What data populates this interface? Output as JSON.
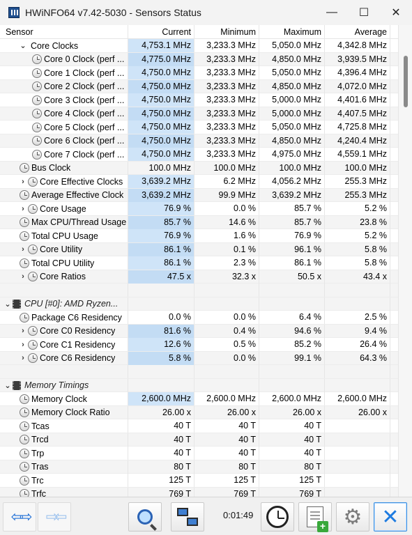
{
  "window": {
    "title": "HWiNFO64 v7.42-5030 - Sensors Status",
    "controls": {
      "minimize": "—",
      "maximize": "☐",
      "close": "✕"
    }
  },
  "columns": [
    "Sensor",
    "Current",
    "Minimum",
    "Maximum",
    "Average"
  ],
  "rows": [
    {
      "type": "sensor",
      "level": 1,
      "expander": "⌄",
      "icon": "",
      "name": "Core Clocks",
      "current": "4,753.1 MHz",
      "min": "3,233.3 MHz",
      "max": "5,050.0 MHz",
      "avg": "4,342.8 MHz",
      "hl": true
    },
    {
      "type": "sensor",
      "level": 2,
      "expander": "",
      "icon": "clock-icon",
      "name": "Core 0 Clock (perf ...",
      "current": "4,775.0 MHz",
      "min": "3,233.3 MHz",
      "max": "4,850.0 MHz",
      "avg": "3,939.5 MHz",
      "hl": true
    },
    {
      "type": "sensor",
      "level": 2,
      "expander": "",
      "icon": "clock-icon",
      "name": "Core 1 Clock (perf ...",
      "current": "4,750.0 MHz",
      "min": "3,233.3 MHz",
      "max": "5,050.0 MHz",
      "avg": "4,396.4 MHz",
      "hl": true
    },
    {
      "type": "sensor",
      "level": 2,
      "expander": "",
      "icon": "clock-icon",
      "name": "Core 2 Clock (perf ...",
      "current": "4,750.0 MHz",
      "min": "3,233.3 MHz",
      "max": "4,850.0 MHz",
      "avg": "4,072.0 MHz",
      "hl": true
    },
    {
      "type": "sensor",
      "level": 2,
      "expander": "",
      "icon": "clock-icon",
      "name": "Core 3 Clock (perf ...",
      "current": "4,750.0 MHz",
      "min": "3,233.3 MHz",
      "max": "5,000.0 MHz",
      "avg": "4,401.6 MHz",
      "hl": true
    },
    {
      "type": "sensor",
      "level": 2,
      "expander": "",
      "icon": "clock-icon",
      "name": "Core 4 Clock (perf ...",
      "current": "4,750.0 MHz",
      "min": "3,233.3 MHz",
      "max": "5,000.0 MHz",
      "avg": "4,407.5 MHz",
      "hl": true
    },
    {
      "type": "sensor",
      "level": 2,
      "expander": "",
      "icon": "clock-icon",
      "name": "Core 5 Clock (perf ...",
      "current": "4,750.0 MHz",
      "min": "3,233.3 MHz",
      "max": "5,050.0 MHz",
      "avg": "4,725.8 MHz",
      "hl": true
    },
    {
      "type": "sensor",
      "level": 2,
      "expander": "",
      "icon": "clock-icon",
      "name": "Core 6 Clock (perf ...",
      "current": "4,750.0 MHz",
      "min": "3,233.3 MHz",
      "max": "4,850.0 MHz",
      "avg": "4,240.4 MHz",
      "hl": true
    },
    {
      "type": "sensor",
      "level": 2,
      "expander": "",
      "icon": "clock-icon",
      "name": "Core 7 Clock (perf ...",
      "current": "4,750.0 MHz",
      "min": "3,233.3 MHz",
      "max": "4,975.0 MHz",
      "avg": "4,559.1 MHz",
      "hl": true
    },
    {
      "type": "sensor",
      "level": 1,
      "expander": "",
      "icon": "clock-icon",
      "name": "Bus Clock",
      "current": "100.0 MHz",
      "min": "100.0 MHz",
      "max": "100.0 MHz",
      "avg": "100.0 MHz",
      "hl": false
    },
    {
      "type": "sensor",
      "level": 1,
      "expander": "›",
      "icon": "clock-icon",
      "name": "Core Effective Clocks",
      "current": "3,639.2 MHz",
      "min": "6.2 MHz",
      "max": "4,056.2 MHz",
      "avg": "255.3 MHz",
      "hl": true
    },
    {
      "type": "sensor",
      "level": 1,
      "expander": "",
      "icon": "clock-icon",
      "name": "Average Effective Clock",
      "current": "3,639.2 MHz",
      "min": "99.9 MHz",
      "max": "3,639.2 MHz",
      "avg": "255.3 MHz",
      "hl": true
    },
    {
      "type": "sensor",
      "level": 1,
      "expander": "›",
      "icon": "clock-icon",
      "name": "Core Usage",
      "current": "76.9 %",
      "min": "0.0 %",
      "max": "85.7 %",
      "avg": "5.2 %",
      "hl": true
    },
    {
      "type": "sensor",
      "level": 1,
      "expander": "",
      "icon": "clock-icon",
      "name": "Max CPU/Thread Usage",
      "current": "85.7 %",
      "min": "14.6 %",
      "max": "85.7 %",
      "avg": "23.8 %",
      "hl": true
    },
    {
      "type": "sensor",
      "level": 1,
      "expander": "",
      "icon": "clock-icon",
      "name": "Total CPU Usage",
      "current": "76.9 %",
      "min": "1.6 %",
      "max": "76.9 %",
      "avg": "5.2 %",
      "hl": true
    },
    {
      "type": "sensor",
      "level": 1,
      "expander": "›",
      "icon": "clock-icon",
      "name": "Core Utility",
      "current": "86.1 %",
      "min": "0.1 %",
      "max": "96.1 %",
      "avg": "5.8 %",
      "hl": true
    },
    {
      "type": "sensor",
      "level": 1,
      "expander": "",
      "icon": "clock-icon",
      "name": "Total CPU Utility",
      "current": "86.1 %",
      "min": "2.3 %",
      "max": "86.1 %",
      "avg": "5.8 %",
      "hl": true
    },
    {
      "type": "sensor",
      "level": 1,
      "expander": "›",
      "icon": "clock-icon",
      "name": "Core Ratios",
      "current": "47.5 x",
      "min": "32.3 x",
      "max": "50.5 x",
      "avg": "43.4 x",
      "hl": true
    },
    {
      "type": "blank"
    },
    {
      "type": "group",
      "expander": "⌄",
      "icon": "chip-icon",
      "name": "CPU [#0]: AMD Ryzen..."
    },
    {
      "type": "sensor",
      "level": 1,
      "expander": "",
      "icon": "clock-icon",
      "name": "Package C6 Residency",
      "current": "0.0 %",
      "min": "0.0 %",
      "max": "6.4 %",
      "avg": "2.5 %",
      "hl": false
    },
    {
      "type": "sensor",
      "level": 1,
      "expander": "›",
      "icon": "clock-icon",
      "name": "Core C0 Residency",
      "current": "81.6 %",
      "min": "0.4 %",
      "max": "94.6 %",
      "avg": "9.4 %",
      "hl": true
    },
    {
      "type": "sensor",
      "level": 1,
      "expander": "›",
      "icon": "clock-icon",
      "name": "Core C1 Residency",
      "current": "12.6 %",
      "min": "0.5 %",
      "max": "85.2 %",
      "avg": "26.4 %",
      "hl": true
    },
    {
      "type": "sensor",
      "level": 1,
      "expander": "›",
      "icon": "clock-icon",
      "name": "Core C6 Residency",
      "current": "5.8 %",
      "min": "0.0 %",
      "max": "99.1 %",
      "avg": "64.3 %",
      "hl": true
    },
    {
      "type": "blank"
    },
    {
      "type": "group",
      "expander": "⌄",
      "icon": "chip-icon",
      "name": "Memory Timings"
    },
    {
      "type": "sensor",
      "level": 1,
      "expander": "",
      "icon": "clock-icon",
      "name": "Memory Clock",
      "current": "2,600.0 MHz",
      "min": "2,600.0 MHz",
      "max": "2,600.0 MHz",
      "avg": "2,600.0 MHz",
      "hl": true
    },
    {
      "type": "sensor",
      "level": 1,
      "expander": "",
      "icon": "clock-icon",
      "name": "Memory Clock Ratio",
      "current": "26.00 x",
      "min": "26.00 x",
      "max": "26.00 x",
      "avg": "26.00 x",
      "hl": false
    },
    {
      "type": "sensor",
      "level": 1,
      "expander": "",
      "icon": "clock-icon",
      "name": "Tcas",
      "current": "40 T",
      "min": "40 T",
      "max": "40 T",
      "avg": "",
      "hl": false
    },
    {
      "type": "sensor",
      "level": 1,
      "expander": "",
      "icon": "clock-icon",
      "name": "Trcd",
      "current": "40 T",
      "min": "40 T",
      "max": "40 T",
      "avg": "",
      "hl": false
    },
    {
      "type": "sensor",
      "level": 1,
      "expander": "",
      "icon": "clock-icon",
      "name": "Trp",
      "current": "40 T",
      "min": "40 T",
      "max": "40 T",
      "avg": "",
      "hl": false
    },
    {
      "type": "sensor",
      "level": 1,
      "expander": "",
      "icon": "clock-icon",
      "name": "Tras",
      "current": "80 T",
      "min": "80 T",
      "max": "80 T",
      "avg": "",
      "hl": false
    },
    {
      "type": "sensor",
      "level": 1,
      "expander": "",
      "icon": "clock-icon",
      "name": "Trc",
      "current": "125 T",
      "min": "125 T",
      "max": "125 T",
      "avg": "",
      "hl": false
    },
    {
      "type": "sensor",
      "level": 1,
      "expander": "",
      "icon": "clock-icon",
      "name": "Trfc",
      "current": "769 T",
      "min": "769 T",
      "max": "769 T",
      "avg": "",
      "hl": false
    }
  ],
  "toolbar": {
    "timer": "0:01:49",
    "buttons": [
      {
        "name": "expand-collapse-left-button",
        "icon": "double-arrow-icon"
      },
      {
        "name": "expand-collapse-right-button",
        "icon": "double-arrow-inward-icon"
      },
      {
        "name": "sensor-search-button",
        "icon": "magnifier-icon"
      },
      {
        "name": "network-button",
        "icon": "network-icon"
      },
      {
        "name": "timer-reset-button",
        "icon": "clock-icon"
      },
      {
        "name": "logging-button",
        "icon": "add-document-icon"
      },
      {
        "name": "settings-button",
        "icon": "gear-icon"
      },
      {
        "name": "close-sensors-button",
        "icon": "close-icon"
      }
    ]
  },
  "colors": {
    "current_highlight": "#cfe4f8",
    "alt_row": "#f4f4f4",
    "accent": "#1e7be0"
  }
}
